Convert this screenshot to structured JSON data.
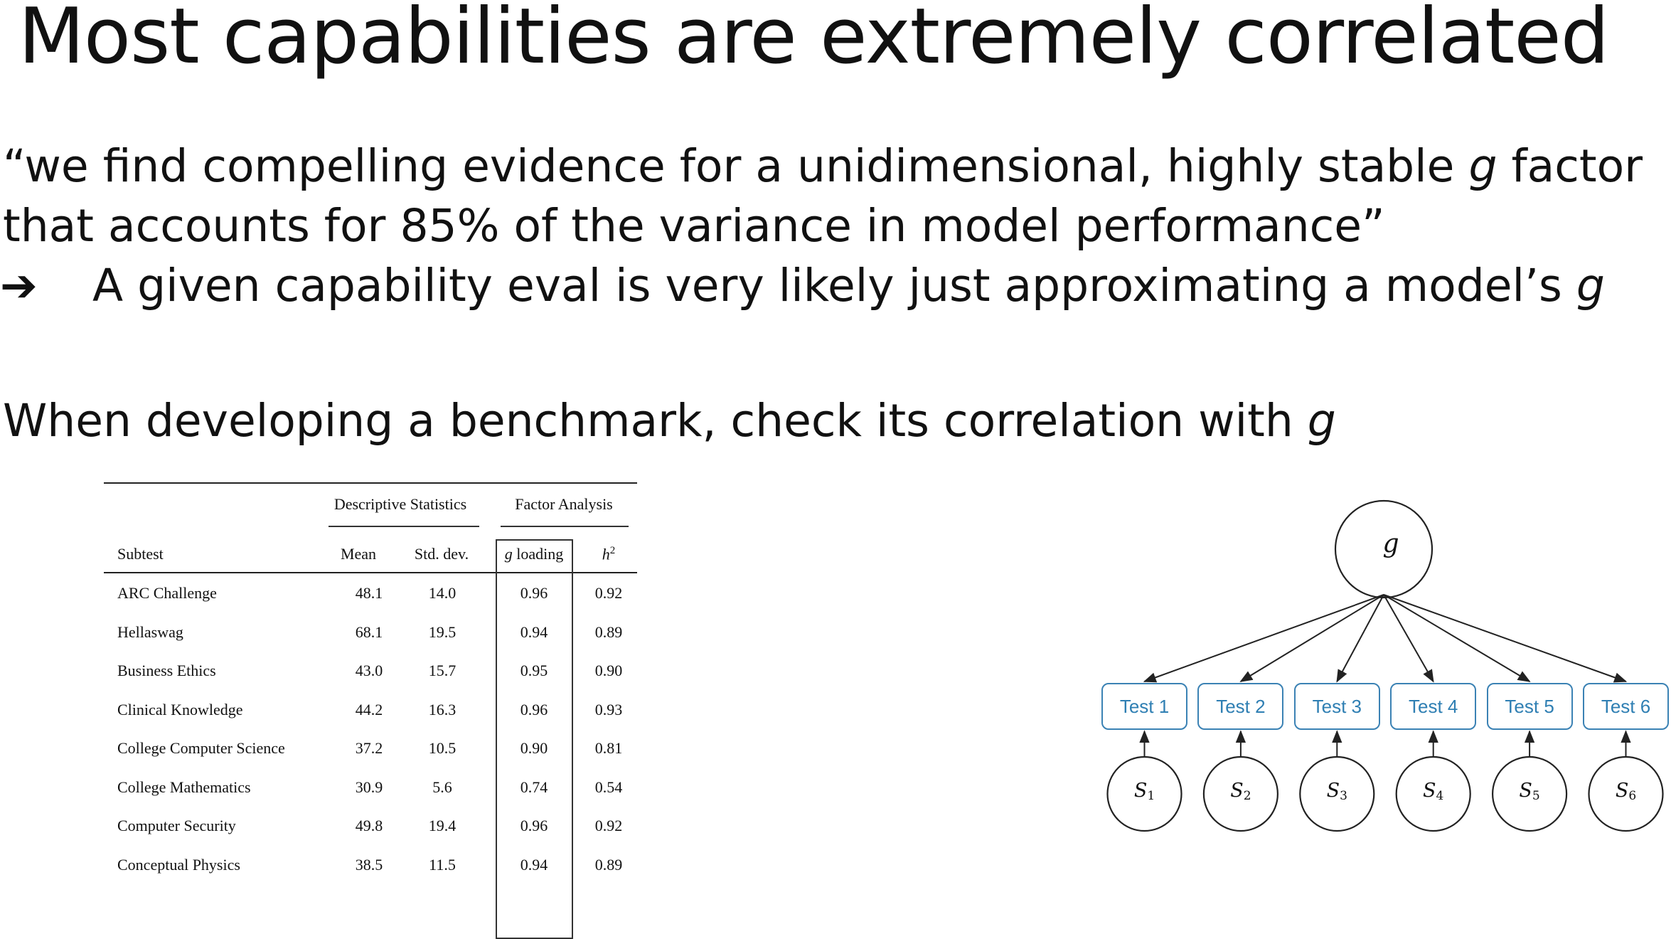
{
  "slide": {
    "title": "Most capabilities are extremely correlated",
    "quote_line1_pre": "“we find compelling evidence for a unidimensional, highly stable ",
    "quote_line1_g": "g",
    "quote_line1_post": " factor",
    "quote_line2": "that accounts for 85% of the variance in model performance”",
    "arrow": "➔",
    "implication_pre": "A given capability eval is very likely just approximating a model’s ",
    "implication_g": "g",
    "check_pre": "When developing a benchmark, check its correlation with ",
    "check_g": "g"
  },
  "table": {
    "group_descriptive": "Descriptive Statistics",
    "group_factor": "Factor Analysis",
    "headers": {
      "subtest": "Subtest",
      "mean": "Mean",
      "sd": "Std. dev.",
      "g_italic": "g",
      "g_rest": " loading",
      "h_base": "h",
      "h_sup": "2"
    },
    "rows": [
      {
        "subtest": "ARC Challenge",
        "mean": "48.1",
        "sd": "14.0",
        "g": "0.96",
        "h2": "0.92"
      },
      {
        "subtest": "Hellaswag",
        "mean": "68.1",
        "sd": "19.5",
        "g": "0.94",
        "h2": "0.89"
      },
      {
        "subtest": "Business Ethics",
        "mean": "43.0",
        "sd": "15.7",
        "g": "0.95",
        "h2": "0.90"
      },
      {
        "subtest": "Clinical Knowledge",
        "mean": "44.2",
        "sd": "16.3",
        "g": "0.96",
        "h2": "0.93"
      },
      {
        "subtest": "College Computer Science",
        "mean": "37.2",
        "sd": "10.5",
        "g": "0.90",
        "h2": "0.81"
      },
      {
        "subtest": "College Mathematics",
        "mean": "30.9",
        "sd": "5.6",
        "g": "0.74",
        "h2": "0.54"
      },
      {
        "subtest": "Computer Security",
        "mean": "49.8",
        "sd": "19.4",
        "g": "0.96",
        "h2": "0.92"
      },
      {
        "subtest": "Conceptual Physics",
        "mean": "38.5",
        "sd": "11.5",
        "g": "0.94",
        "h2": "0.89"
      }
    ]
  },
  "diagram": {
    "g_label": "g",
    "tests": [
      "Test 1",
      "Test 2",
      "Test 3",
      "Test 4",
      "Test 5",
      "Test 6"
    ],
    "specifics": [
      {
        "base": "S",
        "sub": "1"
      },
      {
        "base": "S",
        "sub": "2"
      },
      {
        "base": "S",
        "sub": "3"
      },
      {
        "base": "S",
        "sub": "4"
      },
      {
        "base": "S",
        "sub": "5"
      },
      {
        "base": "S",
        "sub": "6"
      }
    ],
    "box_color": "#3b82b4",
    "text_color": "#2f7fb3"
  }
}
